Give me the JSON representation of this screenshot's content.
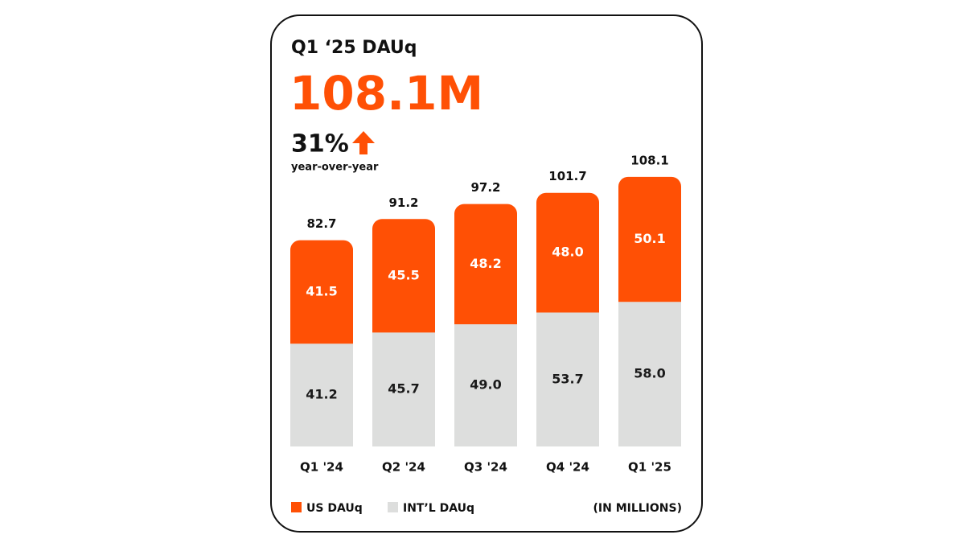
{
  "chart_data": {
    "type": "stacked_bar",
    "title": "Q1 ‘25 DAUq",
    "headline": "108.1M",
    "change": "31%",
    "change_label": "year-over-year",
    "unit_note": "(IN MILLIONS)",
    "categories": [
      "Q1 '24",
      "Q2 '24",
      "Q3 '24",
      "Q4 '24",
      "Q1 '25"
    ],
    "series": [
      {
        "name": "US DAUq",
        "color": "#ff5005",
        "label_color": "#ffffff",
        "values": [
          41.5,
          45.5,
          48.2,
          48.0,
          50.1
        ],
        "value_labels": [
          "41.5",
          "45.5",
          "48.2",
          "48.0",
          "50.1"
        ]
      },
      {
        "name": "INT’L DAUq",
        "color": "#dddedd",
        "label_color": "#1a1a1a",
        "values": [
          41.2,
          45.7,
          49.0,
          53.7,
          58.0
        ],
        "value_labels": [
          "41.2",
          "45.7",
          "49.0",
          "53.7",
          "58.0"
        ]
      }
    ],
    "totals": [
      82.7,
      91.2,
      97.2,
      101.7,
      108.1
    ]
  }
}
